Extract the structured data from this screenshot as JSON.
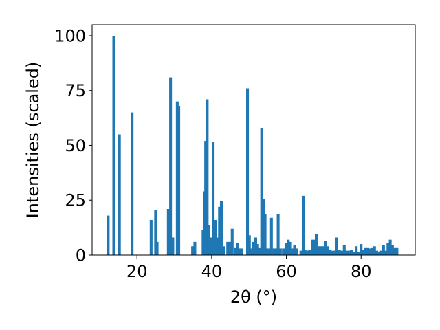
{
  "chart_data": {
    "type": "bar",
    "xlabel": "2θ (°)",
    "ylabel": "Intensities (scaled)",
    "xlim": [
      8,
      94.5
    ],
    "ylim": [
      0,
      105
    ],
    "xticks": [
      20,
      40,
      60,
      80
    ],
    "yticks": [
      0,
      25,
      50,
      75,
      100
    ],
    "bar_width": 0.75,
    "bar_color": "#1f77b4",
    "grid": false,
    "x": [
      12.3,
      13.8,
      15.3,
      18.7,
      23.8,
      25.0,
      25.4,
      28.4,
      29.0,
      29.6,
      30.8,
      31.2,
      34.9,
      35.5,
      37.7,
      38.1,
      38.4,
      38.8,
      39.2,
      39.9,
      40.4,
      41.0,
      41.6,
      42.1,
      42.6,
      43.2,
      44.3,
      44.8,
      45.5,
      46.3,
      47.0,
      47.5,
      48.1,
      49.6,
      50.1,
      50.6,
      51.2,
      51.8,
      52.3,
      52.8,
      53.4,
      53.9,
      54.3,
      54.8,
      55.3,
      56.0,
      56.7,
      57.2,
      57.8,
      58.4,
      59.2,
      60.0,
      60.5,
      61.1,
      61.6,
      62.2,
      62.8,
      63.9,
      64.5,
      65.0,
      65.5,
      66.2,
      67.0,
      67.5,
      68.0,
      68.6,
      69.2,
      69.8,
      70.4,
      71.0,
      71.6,
      72.2,
      72.8,
      73.5,
      74.2,
      74.9,
      75.5,
      76.1,
      76.8,
      77.4,
      78.0,
      78.7,
      79.3,
      80.0,
      80.6,
      81.2,
      81.8,
      82.4,
      83.0,
      83.6,
      84.2,
      84.8,
      85.4,
      86.0,
      86.6,
      87.2,
      87.8,
      88.4,
      89.0,
      89.6
    ],
    "values": [
      18,
      100,
      55,
      65,
      16,
      20.5,
      6,
      21,
      81,
      8,
      70,
      68,
      4,
      6,
      11.5,
      29,
      52,
      71,
      13.5,
      8,
      51.5,
      16,
      8,
      22,
      24.5,
      4,
      6,
      6,
      12,
      3.5,
      5.5,
      3,
      3,
      76,
      9,
      3,
      6,
      8,
      5,
      3.5,
      58,
      25.5,
      18.5,
      3,
      3,
      17,
      3,
      3,
      18.5,
      3,
      3,
      5.5,
      7,
      6,
      3,
      4.5,
      3,
      2,
      27,
      2.5,
      2,
      2.5,
      7,
      7,
      9.5,
      4,
      4,
      4,
      6.5,
      4,
      2.5,
      2,
      2,
      8,
      2.5,
      2,
      4.5,
      2,
      2,
      2.5,
      1.5,
      4,
      1.5,
      5,
      2.5,
      3.5,
      3.5,
      3,
      3.5,
      4,
      2,
      1.5,
      2,
      4.5,
      2,
      5.5,
      7,
      4.5,
      3.5,
      3.5
    ]
  }
}
